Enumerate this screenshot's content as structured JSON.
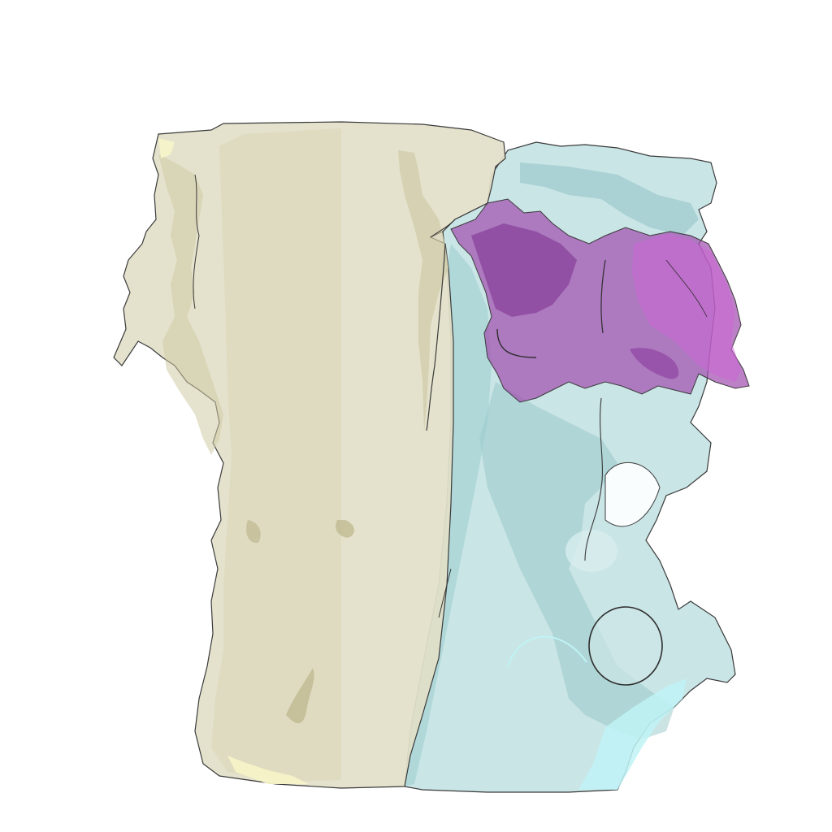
{
  "scene": {
    "background": "#ffffff",
    "segments": [
      {
        "name": "beige-segment",
        "fill": "#e2dfc8",
        "shade": "#cfcaa6",
        "highlight": "#f6f3c8"
      },
      {
        "name": "cyan-segment",
        "fill": "#b8dcde",
        "shade": "#8fc2c4",
        "highlight": "#bff3f6"
      },
      {
        "name": "purple-segment",
        "fill": "#a24fb0",
        "shade": "#7a2f8c",
        "highlight": "#cc66d6"
      }
    ],
    "outline_color": "#3a3a3a"
  }
}
